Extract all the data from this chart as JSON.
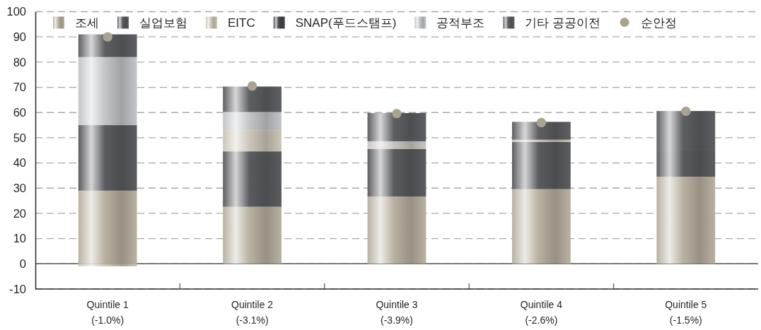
{
  "chart_data": {
    "type": "bar",
    "stacked": true,
    "categories": [
      "Quintile 1\n(-1.0%)",
      "Quintile 2\n(-3.1%)",
      "Quintile 3\n(-3.9%)",
      "Quintile 4\n(-2.6%)",
      "Quintile 5\n(-1.5%)"
    ],
    "series": [
      {
        "name": "조세",
        "color": "#b9b1a1",
        "values": [
          29,
          22.6,
          26.7,
          29.6,
          34.5
        ]
      },
      {
        "name": "실업보험",
        "color": "#5b5c5f",
        "values": [
          26,
          22,
          18.9,
          18.7,
          10.7
        ]
      },
      {
        "name": "EITC",
        "color": "#cdc6b8",
        "values": [
          -1,
          8.4,
          1.3,
          0.9,
          null
        ]
      },
      {
        "name": "SNAP(푸드스탬프)",
        "color": "#47484b",
        "values": [
          null,
          null,
          null,
          null,
          null
        ]
      },
      {
        "name": "공적부조",
        "color": "#c3c5c8",
        "values": [
          27,
          7.2,
          1.7,
          null,
          null
        ]
      },
      {
        "name": "기타 공공이전",
        "color": "#5e5f62",
        "values": [
          9,
          10.1,
          11.2,
          7.1,
          15.4
        ]
      },
      {
        "name": "순안정",
        "type": "scatter",
        "color": "#aba38f",
        "marker": "circle",
        "x": [
          "Quintile 1\n(-1.0%)",
          "Quintile 2\n(-3.1%)",
          "Quintile 3\n(-3.9%)",
          "Quintile 4\n(-2.6%)",
          "Quintile 5\n(-1.5%)"
        ],
        "values": [
          90,
          70.5,
          59.6,
          56,
          60.5
        ]
      }
    ],
    "ylim": [
      -10,
      100
    ],
    "yticks": [
      -10,
      0,
      10,
      20,
      30,
      40,
      50,
      60,
      70,
      80,
      90,
      100
    ],
    "grid": "y",
    "legend": "top",
    "ref_lines": [
      {
        "axis": "y",
        "value": 0,
        "color": "#555555"
      }
    ]
  }
}
